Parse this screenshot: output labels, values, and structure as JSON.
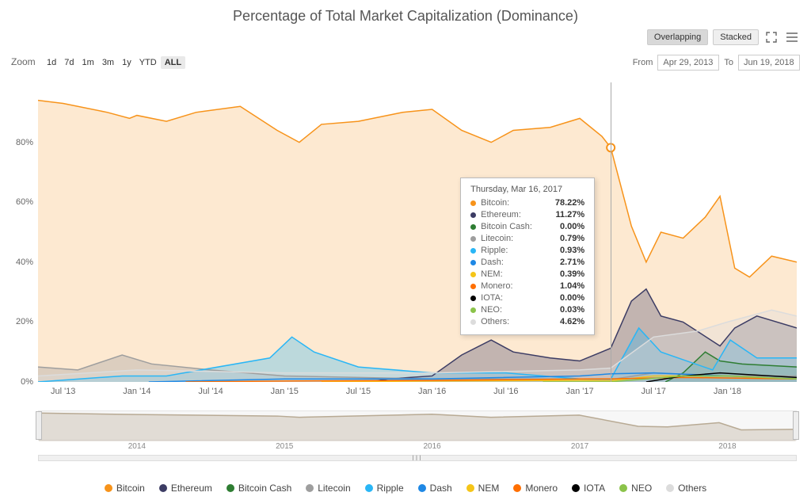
{
  "title": "Percentage of Total Market Capitalization (Dominance)",
  "viewToggle": {
    "overlapping": "Overlapping",
    "stacked": "Stacked",
    "active": "Overlapping"
  },
  "zoom": {
    "label": "Zoom",
    "options": [
      "1d",
      "7d",
      "1m",
      "3m",
      "1y",
      "YTD",
      "ALL"
    ],
    "active": "ALL"
  },
  "dateRange": {
    "fromLabel": "From",
    "from": "Apr 29, 2013",
    "toLabel": "To",
    "to": "Jun 19, 2018"
  },
  "chart": {
    "type": "area",
    "ylim": [
      0,
      100
    ],
    "yticks": [
      0,
      20,
      40,
      60,
      80
    ],
    "y_suffix": "%",
    "xdomain_years": [
      2013.33,
      2018.47
    ],
    "xticks": [
      {
        "t": 2013.5,
        "label": "Jul '13"
      },
      {
        "t": 2014.0,
        "label": "Jan '14"
      },
      {
        "t": 2014.5,
        "label": "Jul '14"
      },
      {
        "t": 2015.0,
        "label": "Jan '15"
      },
      {
        "t": 2015.5,
        "label": "Jul '15"
      },
      {
        "t": 2016.0,
        "label": "Jan '16"
      },
      {
        "t": 2016.5,
        "label": "Jul '16"
      },
      {
        "t": 2017.0,
        "label": "Jan '17"
      },
      {
        "t": 2017.5,
        "label": "Jul '17"
      },
      {
        "t": 2018.0,
        "label": "Jan '18"
      }
    ],
    "crosshair_t": 2017.21,
    "background_color": "#ffffff",
    "series": [
      {
        "name": "Bitcoin",
        "color": "#f7931a",
        "fill_opacity": 0.2,
        "points": [
          [
            2013.33,
            94
          ],
          [
            2013.5,
            93
          ],
          [
            2013.8,
            90
          ],
          [
            2013.95,
            88
          ],
          [
            2014.0,
            89
          ],
          [
            2014.2,
            87
          ],
          [
            2014.4,
            90
          ],
          [
            2014.7,
            92
          ],
          [
            2014.95,
            84
          ],
          [
            2015.1,
            80
          ],
          [
            2015.25,
            86
          ],
          [
            2015.5,
            87
          ],
          [
            2015.8,
            90
          ],
          [
            2016.0,
            91
          ],
          [
            2016.2,
            84
          ],
          [
            2016.4,
            80
          ],
          [
            2016.55,
            84
          ],
          [
            2016.8,
            85
          ],
          [
            2017.0,
            88
          ],
          [
            2017.15,
            82
          ],
          [
            2017.21,
            78.22
          ],
          [
            2017.35,
            52
          ],
          [
            2017.45,
            40
          ],
          [
            2017.55,
            50
          ],
          [
            2017.7,
            48
          ],
          [
            2017.85,
            55
          ],
          [
            2017.95,
            62
          ],
          [
            2018.05,
            38
          ],
          [
            2018.15,
            35
          ],
          [
            2018.3,
            42
          ],
          [
            2018.47,
            40
          ]
        ]
      },
      {
        "name": "Ethereum",
        "color": "#3c3c64",
        "fill_opacity": 0.3,
        "points": [
          [
            2015.58,
            0
          ],
          [
            2015.7,
            1
          ],
          [
            2016.0,
            2
          ],
          [
            2016.2,
            9
          ],
          [
            2016.4,
            14
          ],
          [
            2016.55,
            10
          ],
          [
            2016.8,
            8
          ],
          [
            2017.0,
            7
          ],
          [
            2017.21,
            11.27
          ],
          [
            2017.35,
            27
          ],
          [
            2017.45,
            31
          ],
          [
            2017.55,
            22
          ],
          [
            2017.7,
            20
          ],
          [
            2017.95,
            12
          ],
          [
            2018.05,
            18
          ],
          [
            2018.2,
            22
          ],
          [
            2018.47,
            18
          ]
        ]
      },
      {
        "name": "Bitcoin Cash",
        "color": "#2e7d32",
        "fill_opacity": 0.3,
        "points": [
          [
            2017.58,
            0
          ],
          [
            2017.7,
            3
          ],
          [
            2017.85,
            10
          ],
          [
            2017.95,
            7
          ],
          [
            2018.1,
            6
          ],
          [
            2018.47,
            5
          ]
        ]
      },
      {
        "name": "Litecoin",
        "color": "#9e9e9e",
        "fill_opacity": 0.35,
        "points": [
          [
            2013.33,
            5
          ],
          [
            2013.6,
            4
          ],
          [
            2013.9,
            9
          ],
          [
            2014.1,
            6
          ],
          [
            2014.5,
            4
          ],
          [
            2015.0,
            2
          ],
          [
            2016.0,
            1
          ],
          [
            2017.0,
            1
          ],
          [
            2017.21,
            0.79
          ],
          [
            2017.5,
            3
          ],
          [
            2018.0,
            2
          ],
          [
            2018.47,
            2
          ]
        ]
      },
      {
        "name": "Ripple",
        "color": "#29b6f6",
        "fill_opacity": 0.3,
        "points": [
          [
            2013.33,
            0
          ],
          [
            2013.9,
            2
          ],
          [
            2014.2,
            2
          ],
          [
            2014.9,
            8
          ],
          [
            2015.05,
            15
          ],
          [
            2015.2,
            10
          ],
          [
            2015.5,
            5
          ],
          [
            2016.0,
            3
          ],
          [
            2016.5,
            3
          ],
          [
            2017.0,
            1
          ],
          [
            2017.21,
            0.93
          ],
          [
            2017.4,
            18
          ],
          [
            2017.55,
            10
          ],
          [
            2017.9,
            4
          ],
          [
            2018.02,
            14
          ],
          [
            2018.2,
            8
          ],
          [
            2018.47,
            8
          ]
        ]
      },
      {
        "name": "Dash",
        "color": "#1e88e5",
        "fill_opacity": 0.0,
        "points": [
          [
            2014.08,
            0
          ],
          [
            2015.0,
            1
          ],
          [
            2016.0,
            1
          ],
          [
            2017.0,
            2
          ],
          [
            2017.21,
            2.71
          ],
          [
            2017.5,
            3
          ],
          [
            2018.0,
            2
          ],
          [
            2018.47,
            1
          ]
        ]
      },
      {
        "name": "NEM",
        "color": "#f5c518",
        "fill_opacity": 0.0,
        "points": [
          [
            2015.25,
            0
          ],
          [
            2016.0,
            0.3
          ],
          [
            2017.0,
            0.5
          ],
          [
            2017.21,
            0.39
          ],
          [
            2017.5,
            2
          ],
          [
            2018.0,
            2
          ],
          [
            2018.47,
            1
          ]
        ]
      },
      {
        "name": "Monero",
        "color": "#ff6f00",
        "fill_opacity": 0.0,
        "points": [
          [
            2014.33,
            0
          ],
          [
            2015.0,
            0.3
          ],
          [
            2016.0,
            0.5
          ],
          [
            2017.0,
            1
          ],
          [
            2017.21,
            1.04
          ],
          [
            2017.7,
            1.5
          ],
          [
            2018.47,
            1
          ]
        ]
      },
      {
        "name": "IOTA",
        "color": "#000000",
        "fill_opacity": 0.0,
        "points": [
          [
            2017.45,
            0
          ],
          [
            2017.7,
            2
          ],
          [
            2017.95,
            3
          ],
          [
            2018.47,
            1.5
          ]
        ]
      },
      {
        "name": "NEO",
        "color": "#8bc34a",
        "fill_opacity": 0.0,
        "points": [
          [
            2016.75,
            0
          ],
          [
            2017.21,
            0.03
          ],
          [
            2017.7,
            2
          ],
          [
            2018.0,
            2
          ],
          [
            2018.47,
            1
          ]
        ]
      },
      {
        "name": "Others",
        "color": "#dcdcdc",
        "fill_opacity": 0.35,
        "points": [
          [
            2013.33,
            2
          ],
          [
            2014.0,
            4
          ],
          [
            2015.0,
            3
          ],
          [
            2016.0,
            3
          ],
          [
            2017.0,
            4
          ],
          [
            2017.21,
            4.62
          ],
          [
            2017.5,
            15
          ],
          [
            2017.8,
            17
          ],
          [
            2018.0,
            20
          ],
          [
            2018.3,
            24
          ],
          [
            2018.47,
            22
          ]
        ]
      }
    ]
  },
  "tooltip": {
    "date": "Thursday, Mar 16, 2017",
    "rows": [
      {
        "name": "Bitcoin",
        "color": "#f7931a",
        "value": "78.22%"
      },
      {
        "name": "Ethereum",
        "color": "#3c3c64",
        "value": "11.27%"
      },
      {
        "name": "Bitcoin Cash",
        "color": "#2e7d32",
        "value": "0.00%"
      },
      {
        "name": "Litecoin",
        "color": "#9e9e9e",
        "value": "0.79%"
      },
      {
        "name": "Ripple",
        "color": "#29b6f6",
        "value": "0.93%"
      },
      {
        "name": "Dash",
        "color": "#1e88e5",
        "value": "2.71%"
      },
      {
        "name": "NEM",
        "color": "#f5c518",
        "value": "0.39%"
      },
      {
        "name": "Monero",
        "color": "#ff6f00",
        "value": "1.04%"
      },
      {
        "name": "IOTA",
        "color": "#000000",
        "value": "0.00%"
      },
      {
        "name": "NEO",
        "color": "#8bc34a",
        "value": "0.03%"
      },
      {
        "name": "Others",
        "color": "#dcdcdc",
        "value": "4.62%"
      }
    ]
  },
  "navigator": {
    "ticks": [
      {
        "t": 2014.0,
        "label": "2014"
      },
      {
        "t": 2015.0,
        "label": "2015"
      },
      {
        "t": 2016.0,
        "label": "2016"
      },
      {
        "t": 2017.0,
        "label": "2017"
      },
      {
        "t": 2018.0,
        "label": "2018"
      }
    ],
    "series_points": [
      [
        2013.33,
        94
      ],
      [
        2014.0,
        89
      ],
      [
        2014.95,
        84
      ],
      [
        2015.1,
        80
      ],
      [
        2016.0,
        90
      ],
      [
        2016.4,
        80
      ],
      [
        2017.0,
        87
      ],
      [
        2017.4,
        50
      ],
      [
        2017.6,
        48
      ],
      [
        2017.95,
        62
      ],
      [
        2018.1,
        38
      ],
      [
        2018.47,
        40
      ]
    ],
    "series_color": "#b8aa94",
    "scrollbar_grip": "III"
  },
  "legend": [
    {
      "name": "Bitcoin",
      "color": "#f7931a"
    },
    {
      "name": "Ethereum",
      "color": "#3c3c64"
    },
    {
      "name": "Bitcoin Cash",
      "color": "#2e7d32"
    },
    {
      "name": "Litecoin",
      "color": "#9e9e9e"
    },
    {
      "name": "Ripple",
      "color": "#29b6f6"
    },
    {
      "name": "Dash",
      "color": "#1e88e5"
    },
    {
      "name": "NEM",
      "color": "#f5c518"
    },
    {
      "name": "Monero",
      "color": "#ff6f00"
    },
    {
      "name": "IOTA",
      "color": "#000000"
    },
    {
      "name": "NEO",
      "color": "#8bc34a"
    },
    {
      "name": "Others",
      "color": "#dcdcdc"
    }
  ]
}
